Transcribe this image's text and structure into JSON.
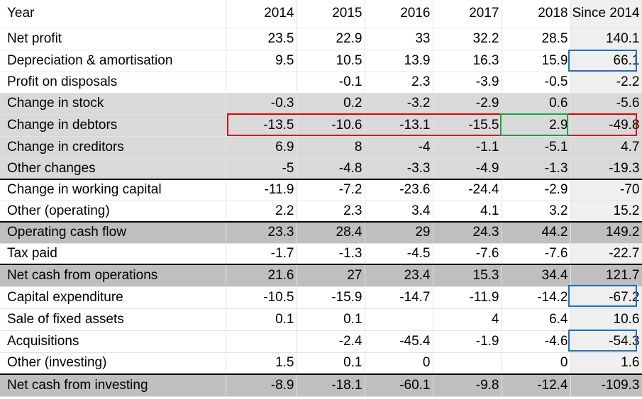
{
  "highlight_colors": {
    "red": "#e00000",
    "green": "#1aa34a",
    "blue": "#1f6fc0"
  },
  "header": [
    "Year",
    "2014",
    "2015",
    "2016",
    "2017",
    "2018",
    "Since 2014"
  ],
  "rows": [
    {
      "label": "Net profit",
      "values": [
        "23.5",
        "22.9",
        "33",
        "32.2",
        "28.5",
        "140.1"
      ],
      "style": "plain"
    },
    {
      "label": "Depreciation & amortisation",
      "values": [
        "9.5",
        "10.5",
        "13.9",
        "16.3",
        "15.9",
        "66.1"
      ],
      "style": "plain"
    },
    {
      "label": "Profit on disposals",
      "values": [
        "",
        "-0.1",
        "2.3",
        "-3.9",
        "-0.5",
        "-2.2"
      ],
      "style": "plain"
    },
    {
      "label": "Change in stock",
      "values": [
        "-0.3",
        "0.2",
        "-3.2",
        "-2.9",
        "0.6",
        "-5.6"
      ],
      "style": "light"
    },
    {
      "label": "Change in debtors",
      "values": [
        "-13.5",
        "-10.6",
        "-13.1",
        "-15.5",
        "2.9",
        "-49.8"
      ],
      "style": "light"
    },
    {
      "label": "Change in creditors",
      "values": [
        "6.9",
        "8",
        "-4",
        "-1.1",
        "-5.1",
        "4.7"
      ],
      "style": "light"
    },
    {
      "label": "Other changes",
      "values": [
        "-5",
        "-4.8",
        "-3.3",
        "-4.9",
        "-1.3",
        "-19.3"
      ],
      "style": "light"
    },
    {
      "label": "Change in working capital",
      "values": [
        "-11.9",
        "-7.2",
        "-23.6",
        "-24.4",
        "-2.9",
        "-70"
      ],
      "style": "plain",
      "topline": true
    },
    {
      "label": "Other (operating)",
      "values": [
        "2.2",
        "2.3",
        "3.4",
        "4.1",
        "3.2",
        "15.2"
      ],
      "style": "plain"
    },
    {
      "label": "Operating cash flow",
      "values": [
        "23.3",
        "28.4",
        "29",
        "24.3",
        "44.2",
        "149.2"
      ],
      "style": "dark",
      "topline": true
    },
    {
      "label": "Tax paid",
      "values": [
        "-1.7",
        "-1.3",
        "-4.5",
        "-7.6",
        "-7.6",
        "-22.7"
      ],
      "style": "plain"
    },
    {
      "label": "Net cash from operations",
      "values": [
        "21.6",
        "27",
        "23.4",
        "15.3",
        "34.4",
        "121.7"
      ],
      "style": "dark",
      "topline": true
    },
    {
      "label": "Capital expenditure",
      "values": [
        "-10.5",
        "-15.9",
        "-14.7",
        "-11.9",
        "-14.2",
        "-67.2"
      ],
      "style": "plain"
    },
    {
      "label": "Sale of fixed assets",
      "values": [
        "0.1",
        "0.1",
        "",
        "4",
        "6.4",
        "10.6"
      ],
      "style": "plain"
    },
    {
      "label": "Acquisitions",
      "values": [
        "",
        "-2.4",
        "-45.4",
        "-1.9",
        "-4.6",
        "-54.3"
      ],
      "style": "plain"
    },
    {
      "label": "Other (investing)",
      "values": [
        "1.5",
        "0.1",
        "0",
        "",
        "0",
        "1.6"
      ],
      "style": "plain"
    },
    {
      "label": "Net cash from investing",
      "values": [
        "-8.9",
        "-18.1",
        "-60.1",
        "-9.8",
        "-12.4",
        "-109.3"
      ],
      "style": "dark",
      "topline": true
    }
  ]
}
